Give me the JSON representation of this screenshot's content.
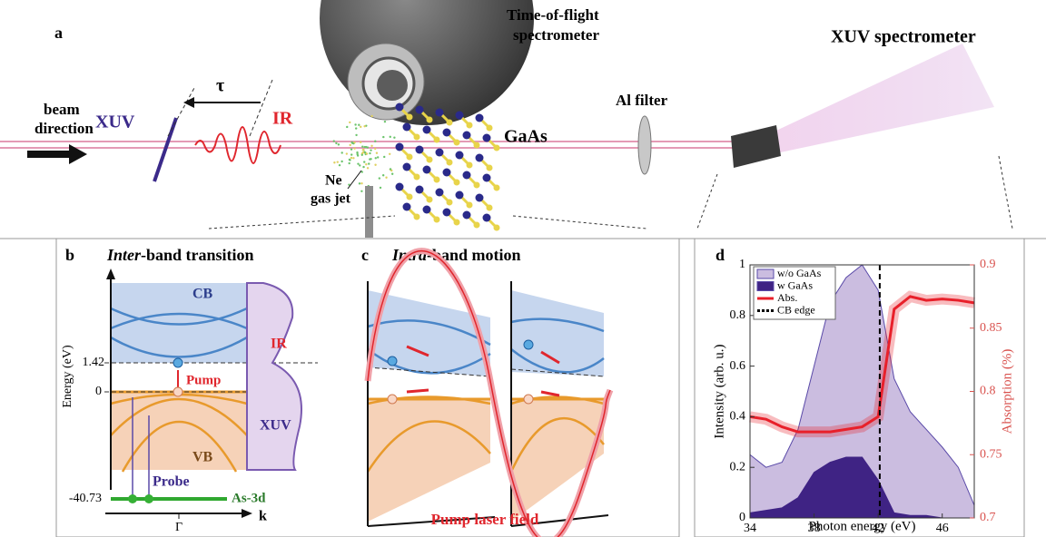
{
  "panel_a": {
    "label": "a",
    "tof": [
      "Time-of-flight",
      "spectrometer"
    ],
    "xuv_spectrometer": "XUV spectrometer",
    "beam": [
      "beam",
      "direction"
    ],
    "xuv": "XUV",
    "tau": "τ",
    "ir": "IR",
    "gaas": "GaAs",
    "al_filter": "Al filter",
    "gas_jet": [
      "Ne",
      "gas jet"
    ]
  },
  "panel_b": {
    "label": "b",
    "title_italic": "Inter",
    "title_rest": "-band transition",
    "cb": "CB",
    "vb": "VB",
    "y_label": "Energy (eV)",
    "levels": [
      "1.42",
      "0",
      "-40.73"
    ],
    "ir": "IR",
    "pump": "Pump",
    "xuv": "XUV",
    "probe": "Probe",
    "core": "As-3d",
    "gamma": "Γ",
    "k": "k"
  },
  "panel_c": {
    "label": "c",
    "title_italic": "Intra",
    "title_rest": "-band motion",
    "field": "Pump laser field"
  },
  "chart_data": {
    "type": "area",
    "label": "d",
    "xlabel": "Photon energy (eV)",
    "ylabel": "Intensity (arb. u.)",
    "y2label": "Absorption (%)",
    "x": [
      34,
      35,
      36,
      37,
      38,
      39,
      40,
      41,
      42,
      43,
      44,
      45,
      46,
      47,
      48
    ],
    "series": [
      {
        "name": "w/o GaAs",
        "type": "area",
        "color": "#cbbde0",
        "values": [
          0.25,
          0.2,
          0.22,
          0.35,
          0.6,
          0.85,
          0.95,
          1.0,
          0.9,
          0.55,
          0.42,
          0.35,
          0.28,
          0.2,
          0.05
        ]
      },
      {
        "name": "w GaAs",
        "type": "area",
        "color": "#3f2384",
        "values": [
          0.02,
          0.03,
          0.04,
          0.08,
          0.18,
          0.22,
          0.24,
          0.24,
          0.15,
          0.02,
          0.01,
          0.01,
          0,
          0,
          0
        ]
      },
      {
        "name": "Abs.",
        "type": "line",
        "axis": "y2",
        "color": "#e8202a",
        "values": [
          0.78,
          0.778,
          0.772,
          0.768,
          0.768,
          0.768,
          0.77,
          0.772,
          0.78,
          0.865,
          0.875,
          0.872,
          0.873,
          0.872,
          0.87
        ]
      },
      {
        "name": "CB edge",
        "type": "vline",
        "color": "#000000",
        "x": 42.1
      }
    ],
    "xlim": [
      34,
      48
    ],
    "xticks": [
      34,
      38,
      42,
      46
    ],
    "ylim": [
      0,
      1
    ],
    "yticks": [
      0,
      0.2,
      0.4,
      0.6,
      0.8,
      1
    ],
    "y2lim": [
      0.7,
      0.9
    ],
    "y2ticks": [
      0.7,
      0.75,
      0.8,
      0.85,
      0.9
    ],
    "y2color": "#d9534f"
  }
}
